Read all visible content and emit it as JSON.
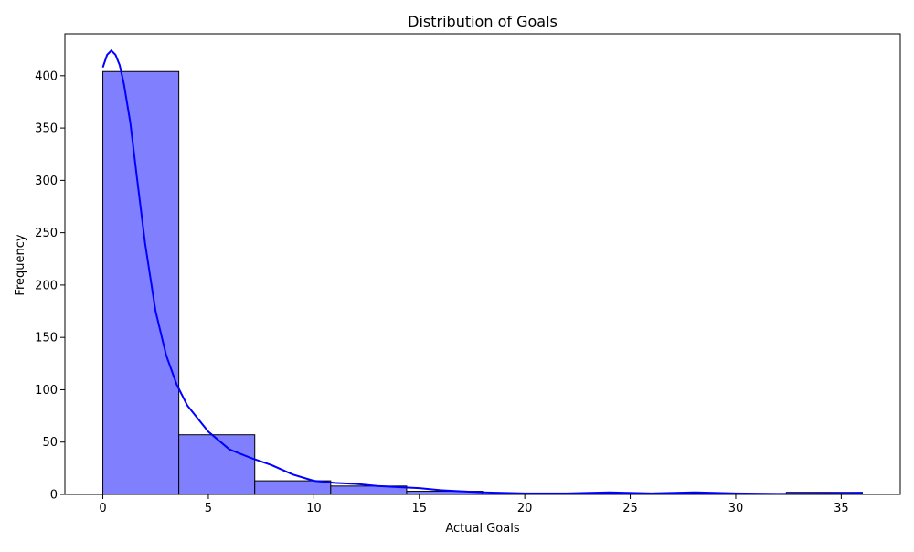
{
  "chart_data": {
    "type": "bar",
    "title": "Distribution of Goals",
    "xlabel": "Actual Goals",
    "ylabel": "Frequency",
    "xlim": [
      -1.8,
      37.8
    ],
    "ylim": [
      0,
      440
    ],
    "x_ticks": [
      0,
      5,
      10,
      15,
      20,
      25,
      30,
      35
    ],
    "y_ticks": [
      0,
      50,
      100,
      150,
      200,
      250,
      300,
      350,
      400
    ],
    "bins": [
      {
        "x0": 0.0,
        "x1": 3.6,
        "count": 404
      },
      {
        "x0": 3.6,
        "x1": 7.2,
        "count": 57
      },
      {
        "x0": 7.2,
        "x1": 10.8,
        "count": 13
      },
      {
        "x0": 10.8,
        "x1": 14.4,
        "count": 8
      },
      {
        "x0": 14.4,
        "x1": 18.0,
        "count": 3
      },
      {
        "x0": 18.0,
        "x1": 21.6,
        "count": 0
      },
      {
        "x0": 21.6,
        "x1": 25.2,
        "count": 1
      },
      {
        "x0": 25.2,
        "x1": 28.8,
        "count": 1
      },
      {
        "x0": 28.8,
        "x1": 32.4,
        "count": 0
      },
      {
        "x0": 32.4,
        "x1": 36.0,
        "count": 2
      }
    ],
    "kde": {
      "x": [
        0,
        0.2,
        0.4,
        0.6,
        0.8,
        1.0,
        1.3,
        1.6,
        2.0,
        2.5,
        3.0,
        3.5,
        4.0,
        5.0,
        6.0,
        7.0,
        8.0,
        9.0,
        10.0,
        11.0,
        12.0,
        13.0,
        14.0,
        15.0,
        16.0,
        17.0,
        18.0,
        20.0,
        22.0,
        24.0,
        26.0,
        28.0,
        30.0,
        32.0,
        34.0,
        36.0
      ],
      "y": [
        408,
        420,
        424,
        420,
        410,
        392,
        355,
        305,
        240,
        175,
        133,
        105,
        85,
        60,
        43,
        35,
        28,
        19,
        13,
        11,
        10,
        8,
        7,
        6,
        4,
        3,
        2,
        1,
        1,
        2,
        1,
        2,
        1,
        0.5,
        0.8,
        1.5
      ]
    },
    "bar_color": "#8080ff",
    "bar_edge_color": "#000000",
    "kde_color": "#0000ff",
    "grid": false,
    "legend": "none"
  }
}
